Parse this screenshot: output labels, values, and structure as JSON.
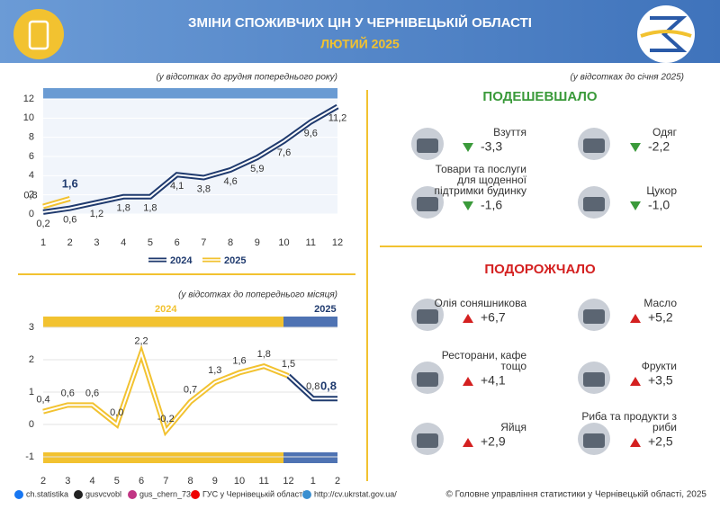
{
  "header": {
    "title": "ЗМІНИ СПОЖИВЧИХ ЦІН У ЧЕРНІВЕЦЬКІЙ ОБЛАСТІ",
    "subtitle": "ЛЮТИЙ 2025"
  },
  "chart_data": [
    {
      "type": "line",
      "subtitle": "(у відсотках до грудня попереднього року)",
      "x": [
        1,
        2,
        3,
        4,
        5,
        6,
        7,
        8,
        9,
        10,
        11,
        12
      ],
      "xlim": [
        1,
        12
      ],
      "xticks": [
        1,
        2,
        3,
        4,
        5,
        6,
        7,
        8,
        9,
        10,
        11,
        12
      ],
      "ylim": [
        0,
        12
      ],
      "yticks": [
        0,
        2,
        4,
        6,
        8,
        10,
        12
      ],
      "legend": "bottom",
      "series": [
        {
          "name": "2024",
          "color": "#1f3a6e",
          "values": [
            0.2,
            0.6,
            1.2,
            1.8,
            1.8,
            4.1,
            3.8,
            4.6,
            5.9,
            7.6,
            9.6,
            11.2
          ],
          "value_labels": [
            "0,2",
            "0,6",
            "1,2",
            "1,8",
            "1,8",
            "4,1",
            "3,8",
            "4,6",
            "5,9",
            "7,6",
            "9,6",
            "11,2"
          ]
        },
        {
          "name": "2025",
          "color": "#f2c230",
          "values": [
            0.8,
            1.6,
            null,
            null,
            null,
            null,
            null,
            null,
            null,
            null,
            null,
            null
          ],
          "value_labels": [
            "0,8",
            "1,6",
            null,
            null,
            null,
            null,
            null,
            null,
            null,
            null,
            null,
            null
          ]
        }
      ]
    },
    {
      "type": "line",
      "subtitle": "(у відсотках до попереднього місяця)",
      "categories": [
        "2",
        "3",
        "4",
        "5",
        "6",
        "7",
        "8",
        "9",
        "10",
        "11",
        "12",
        "1",
        "2"
      ],
      "ylim": [
        -1,
        3
      ],
      "yticks": [
        -1,
        0,
        1,
        2,
        3
      ],
      "values": [
        0.4,
        0.6,
        0.6,
        0.0,
        2.2,
        -0.2,
        0.7,
        1.3,
        1.6,
        1.8,
        1.5,
        0.8,
        0.8
      ],
      "value_labels": [
        "0,4",
        "0,6",
        "0,6",
        "0,0",
        "2,2",
        "-0,2",
        "0,7",
        "1,3",
        "1,6",
        "1,8",
        "1,5",
        "0,8",
        "0,8"
      ],
      "groups": [
        {
          "name": "2024",
          "color": "#f2c230",
          "count": 11
        },
        {
          "name": "2025",
          "color": "#1f3a6e",
          "count": 2
        }
      ]
    }
  ],
  "cheaper": {
    "note": "(у відсотках до січня 2025)",
    "title": "ПОДЕШЕВШАЛО",
    "items": [
      {
        "name": "Взуття",
        "value": "-3,3"
      },
      {
        "name": "Одяг",
        "value": "-2,2"
      },
      {
        "name": "Товари та послуги для щоденної підтримки будинку",
        "value": "-1,6"
      },
      {
        "name": "Цукор",
        "value": "-1,0"
      }
    ]
  },
  "pricier": {
    "title": "ПОДОРОЖЧАЛО",
    "items": [
      {
        "name": "Олія соняшникова",
        "value": "+6,7"
      },
      {
        "name": "Масло",
        "value": "+5,2"
      },
      {
        "name": "Ресторани, кафе тощо",
        "value": "+4,1"
      },
      {
        "name": "Фрукти",
        "value": "+3,5"
      },
      {
        "name": "Яйця",
        "value": "+2,9"
      },
      {
        "name": "Риба та продукти з риби",
        "value": "+2,5"
      }
    ]
  },
  "footer": {
    "links": [
      "ch.statistika",
      "gusvcvobl",
      "gus_chern_73",
      "ГУС у Чернівецькій області",
      "http://cv.ukrstat.gov.ua/"
    ],
    "copyright": "© Головне управління статистики у Чернівецькій області, 2025"
  }
}
